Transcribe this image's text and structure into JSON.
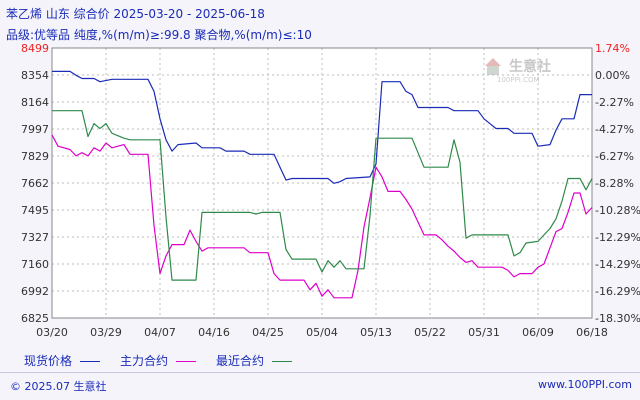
{
  "header": {
    "title": "苯乙烯 山东 综合价 2025-03-20 - 2025-06-18",
    "subtitle": "品级:优等品 纯度,%(m/m)≥:99.8 聚合物,%(m/m)≤:10"
  },
  "watermark": {
    "text": "生意社",
    "url": "100PPI.COM"
  },
  "legend": {
    "items": [
      {
        "label": "现货价格",
        "color": "#1a2bb8"
      },
      {
        "label": "主力合约",
        "color": "#dd00cc"
      },
      {
        "label": "最近合约",
        "color": "#2f8a4a"
      }
    ]
  },
  "footer": {
    "copyright": "© 2025.07 生意社",
    "site": "www.100PPI.com"
  },
  "chart_data": {
    "type": "line",
    "x_ticks": [
      "03/20",
      "03/29",
      "04/07",
      "04/16",
      "04/25",
      "05/04",
      "05/13",
      "05/22",
      "05/31",
      "06/09",
      "06/18"
    ],
    "y_left_ticks": [
      "8499",
      "8354",
      "8164",
      "7997",
      "7829",
      "7662",
      "7495",
      "7327",
      "7160",
      "6992",
      "6825"
    ],
    "y_right_ticks": [
      "1.74%",
      "0.00%",
      "-2.27%",
      "-4.27%",
      "-6.27%",
      "-8.28%",
      "-10.28%",
      "-12.29%",
      "-14.29%",
      "-16.29%",
      "-18.30%"
    ],
    "ylim": [
      6825,
      8499
    ],
    "x_range": [
      0,
      90
    ],
    "series": [
      {
        "name": "现货价格",
        "color": "#1a2bb8",
        "points": [
          [
            0,
            8354
          ],
          [
            3,
            8354
          ],
          [
            4,
            8330
          ],
          [
            5,
            8310
          ],
          [
            7,
            8310
          ],
          [
            8,
            8290
          ],
          [
            10,
            8305
          ],
          [
            16,
            8305
          ],
          [
            17,
            8230
          ],
          [
            18,
            8060
          ],
          [
            19,
            7930
          ],
          [
            20,
            7860
          ],
          [
            21,
            7900
          ],
          [
            24,
            7910
          ],
          [
            25,
            7880
          ],
          [
            28,
            7880
          ],
          [
            29,
            7860
          ],
          [
            32,
            7860
          ],
          [
            33,
            7840
          ],
          [
            37,
            7840
          ],
          [
            38,
            7760
          ],
          [
            39,
            7680
          ],
          [
            40,
            7690
          ],
          [
            46,
            7690
          ],
          [
            47,
            7660
          ],
          [
            48,
            7670
          ],
          [
            49,
            7690
          ],
          [
            53,
            7700
          ],
          [
            54,
            7780
          ],
          [
            55,
            8290
          ],
          [
            58,
            8290
          ],
          [
            59,
            8230
          ],
          [
            60,
            8210
          ],
          [
            61,
            8130
          ],
          [
            66,
            8130
          ],
          [
            67,
            8110
          ],
          [
            71,
            8110
          ],
          [
            72,
            8060
          ],
          [
            74,
            8000
          ],
          [
            76,
            8000
          ],
          [
            77,
            7970
          ],
          [
            80,
            7970
          ],
          [
            81,
            7890
          ],
          [
            83,
            7900
          ],
          [
            84,
            7990
          ],
          [
            85,
            8060
          ],
          [
            87,
            8060
          ],
          [
            88,
            8210
          ],
          [
            90,
            8210
          ]
        ]
      },
      {
        "name": "主力合约",
        "color": "#dd00cc",
        "points": [
          [
            0,
            7960
          ],
          [
            1,
            7890
          ],
          [
            3,
            7870
          ],
          [
            4,
            7830
          ],
          [
            5,
            7850
          ],
          [
            6,
            7830
          ],
          [
            7,
            7880
          ],
          [
            8,
            7860
          ],
          [
            9,
            7910
          ],
          [
            10,
            7880
          ],
          [
            12,
            7900
          ],
          [
            13,
            7840
          ],
          [
            16,
            7840
          ],
          [
            17,
            7400
          ],
          [
            18,
            7100
          ],
          [
            19,
            7210
          ],
          [
            20,
            7280
          ],
          [
            22,
            7280
          ],
          [
            23,
            7370
          ],
          [
            24,
            7300
          ],
          [
            25,
            7240
          ],
          [
            26,
            7260
          ],
          [
            32,
            7260
          ],
          [
            33,
            7230
          ],
          [
            36,
            7230
          ],
          [
            37,
            7100
          ],
          [
            38,
            7060
          ],
          [
            42,
            7060
          ],
          [
            43,
            7000
          ],
          [
            44,
            7040
          ],
          [
            45,
            6960
          ],
          [
            46,
            7000
          ],
          [
            47,
            6950
          ],
          [
            50,
            6950
          ],
          [
            51,
            7120
          ],
          [
            52,
            7390
          ],
          [
            53,
            7570
          ],
          [
            54,
            7760
          ],
          [
            55,
            7700
          ],
          [
            56,
            7610
          ],
          [
            58,
            7610
          ],
          [
            59,
            7560
          ],
          [
            60,
            7500
          ],
          [
            61,
            7420
          ],
          [
            62,
            7340
          ],
          [
            64,
            7340
          ],
          [
            65,
            7310
          ],
          [
            66,
            7270
          ],
          [
            67,
            7240
          ],
          [
            68,
            7200
          ],
          [
            69,
            7170
          ],
          [
            70,
            7180
          ],
          [
            71,
            7140
          ],
          [
            75,
            7140
          ],
          [
            76,
            7120
          ],
          [
            77,
            7080
          ],
          [
            78,
            7100
          ],
          [
            80,
            7100
          ],
          [
            81,
            7140
          ],
          [
            82,
            7160
          ],
          [
            83,
            7260
          ],
          [
            84,
            7360
          ],
          [
            85,
            7380
          ],
          [
            86,
            7480
          ],
          [
            87,
            7600
          ],
          [
            88,
            7600
          ],
          [
            89,
            7470
          ],
          [
            90,
            7510
          ]
        ]
      },
      {
        "name": "最近合约",
        "color": "#2f8a4a",
        "points": [
          [
            0,
            8110
          ],
          [
            5,
            8110
          ],
          [
            6,
            7950
          ],
          [
            7,
            8030
          ],
          [
            8,
            8000
          ],
          [
            9,
            8030
          ],
          [
            10,
            7970
          ],
          [
            12,
            7940
          ],
          [
            13,
            7930
          ],
          [
            18,
            7930
          ],
          [
            19,
            7450
          ],
          [
            20,
            7060
          ],
          [
            24,
            7060
          ],
          [
            25,
            7480
          ],
          [
            33,
            7480
          ],
          [
            34,
            7470
          ],
          [
            35,
            7480
          ],
          [
            38,
            7480
          ],
          [
            39,
            7250
          ],
          [
            40,
            7190
          ],
          [
            44,
            7190
          ],
          [
            45,
            7110
          ],
          [
            46,
            7180
          ],
          [
            47,
            7140
          ],
          [
            48,
            7180
          ],
          [
            49,
            7130
          ],
          [
            52,
            7130
          ],
          [
            53,
            7460
          ],
          [
            54,
            7940
          ],
          [
            60,
            7940
          ],
          [
            61,
            7850
          ],
          [
            62,
            7760
          ],
          [
            66,
            7760
          ],
          [
            67,
            7930
          ],
          [
            68,
            7790
          ],
          [
            69,
            7320
          ],
          [
            70,
            7340
          ],
          [
            76,
            7340
          ],
          [
            77,
            7210
          ],
          [
            78,
            7230
          ],
          [
            79,
            7290
          ],
          [
            81,
            7300
          ],
          [
            82,
            7340
          ],
          [
            83,
            7380
          ],
          [
            84,
            7440
          ],
          [
            85,
            7550
          ],
          [
            86,
            7690
          ],
          [
            88,
            7690
          ],
          [
            89,
            7620
          ],
          [
            90,
            7690
          ]
        ]
      }
    ]
  }
}
